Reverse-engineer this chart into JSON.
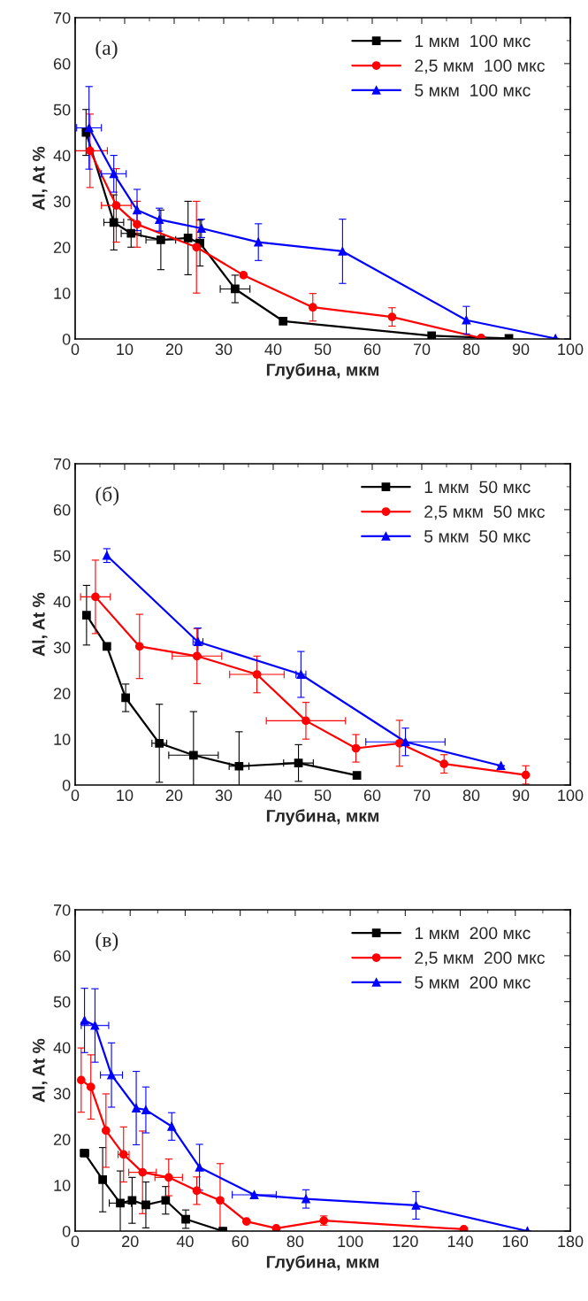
{
  "chart_data": [
    {
      "type": "line",
      "annotations": [
        "(a)"
      ],
      "xlabel": "Глубина, мкм",
      "ylabel": "Al, At %",
      "xlim": [
        0,
        100
      ],
      "xticks": [
        0,
        10,
        20,
        30,
        40,
        50,
        60,
        70,
        80,
        90,
        100
      ],
      "ylim": [
        0,
        70
      ],
      "yticks": [
        0,
        10,
        20,
        30,
        40,
        50,
        60,
        70
      ],
      "legend": "top right",
      "grid": false,
      "series": [
        {
          "name": "1 мкм  100 мкс",
          "color": "#000000",
          "marker": "square",
          "x": [
            2.2,
            7.8,
            11.3,
            17.3,
            22.8,
            25.2,
            32.3,
            42,
            72,
            87.6
          ],
          "values": [
            45,
            25.4,
            23,
            21.6,
            22,
            20.9,
            10.9,
            3.9,
            0.7,
            0.1
          ],
          "errors": [
            5,
            6,
            3,
            6.5,
            8,
            5,
            3,
            null,
            null,
            null
          ],
          "xerrors": [
            null,
            2,
            2,
            3,
            null,
            null,
            3,
            null,
            null,
            null
          ]
        },
        {
          "name": "2,5 мкм  100 мкс",
          "color": "#ff0000",
          "marker": "circle",
          "x": [
            3,
            8.3,
            12.5,
            24.5,
            34,
            48,
            64,
            82
          ],
          "values": [
            41,
            29.1,
            25,
            20,
            13.9,
            6.9,
            4.8,
            0.2
          ],
          "errors": [
            8,
            8,
            5,
            10,
            null,
            3,
            2,
            null
          ],
          "xerrors": [
            3.5,
            3,
            null,
            null,
            null,
            null,
            null,
            null
          ]
        },
        {
          "name": "5 мкм  100 мкс",
          "color": "#0000ff",
          "marker": "triangle",
          "x": [
            2.8,
            7.8,
            12.5,
            17,
            25.5,
            37,
            54,
            79,
            97
          ],
          "values": [
            46,
            36,
            28.1,
            26,
            24.1,
            21.1,
            19.1,
            4.1,
            0.1
          ],
          "errors": [
            9,
            4,
            4.5,
            2.5,
            2,
            4,
            7,
            3,
            null
          ],
          "xerrors": [
            2.5,
            2.5,
            null,
            null,
            null,
            null,
            null,
            null,
            null
          ]
        }
      ]
    },
    {
      "type": "line",
      "annotations": [
        "(б)"
      ],
      "xlabel": "Глубина, мкм",
      "ylabel": "Al, At %",
      "xlim": [
        0,
        100
      ],
      "xticks": [
        0,
        10,
        20,
        30,
        40,
        50,
        60,
        70,
        80,
        90,
        100
      ],
      "ylim": [
        0,
        70
      ],
      "yticks": [
        0,
        10,
        20,
        30,
        40,
        50,
        60,
        70
      ],
      "legend": "top right",
      "grid": false,
      "series": [
        {
          "name": "1 мкм  50 мкс",
          "color": "#000000",
          "marker": "square",
          "x": [
            2.3,
            6.4,
            10.2,
            17,
            23.9,
            33.1,
            45.1,
            56.9
          ],
          "values": [
            37,
            30.2,
            19,
            9.1,
            6.5,
            4.1,
            4.8,
            2.1
          ],
          "errors": [
            6.5,
            null,
            3,
            8.5,
            9.5,
            7.5,
            4,
            null
          ],
          "xerrors": [
            null,
            null,
            null,
            1.5,
            5,
            2,
            3,
            null
          ]
        },
        {
          "name": "2,5 мкм  50 мкс",
          "color": "#ff0000",
          "marker": "circle",
          "x": [
            4.1,
            13,
            24.6,
            36.7,
            46.6,
            56.7,
            65.5,
            74.5,
            91
          ],
          "values": [
            41,
            30.2,
            28.1,
            24.1,
            14,
            8,
            9.1,
            4.6,
            2.2
          ],
          "errors": [
            8,
            7,
            6,
            4,
            4,
            3,
            5,
            2,
            2
          ],
          "xerrors": [
            3,
            null,
            5,
            5.5,
            8,
            null,
            null,
            null,
            null
          ]
        },
        {
          "name": "5 мкм  50 мкс",
          "color": "#0000ff",
          "marker": "triangle",
          "x": [
            6.4,
            24.8,
            45.6,
            66.7,
            86
          ],
          "values": [
            50,
            31.2,
            24.1,
            9.4,
            4.2
          ],
          "errors": [
            1.5,
            3,
            5,
            3,
            null
          ],
          "xerrors": [
            null,
            1,
            1,
            8,
            null
          ]
        }
      ]
    },
    {
      "type": "line",
      "annotations": [
        "(в)"
      ],
      "xlabel": "Глубина, мкм",
      "ylabel": "Al, At %",
      "xlim": [
        0,
        180
      ],
      "xticks": [
        0,
        20,
        40,
        60,
        80,
        100,
        120,
        140,
        160,
        180
      ],
      "ylim": [
        0,
        70
      ],
      "yticks": [
        0,
        10,
        20,
        30,
        40,
        50,
        60,
        70
      ],
      "legend": "top right",
      "grid": false,
      "series": [
        {
          "name": "1 мкм  200 мкс",
          "color": "#000000",
          "marker": "square",
          "x": [
            3.4,
            10,
            16.4,
            20.7,
            25.7,
            32.9,
            40.2,
            53.7
          ],
          "values": [
            17,
            11.2,
            6.1,
            6.7,
            5.7,
            6.7,
            2.6,
            0
          ],
          "errors": [
            null,
            7,
            7,
            5,
            5,
            3,
            2,
            null
          ],
          "xerrors": [
            1.5,
            null,
            4,
            null,
            null,
            null,
            null,
            null
          ]
        },
        {
          "name": "2,5 мкм  200 мкс",
          "color": "#ff0000",
          "marker": "circle",
          "x": [
            2.2,
            5.7,
            11.2,
            17.6,
            24.5,
            34,
            44.2,
            52.7,
            62.3,
            73.1,
            90.4,
            141.3
          ],
          "values": [
            32.9,
            31.4,
            21.9,
            16.7,
            12.8,
            11.7,
            8.8,
            6.7,
            2.1,
            0.6,
            2.3,
            0.4
          ],
          "errors": [
            7,
            7,
            8,
            6,
            9,
            4,
            3,
            8,
            null,
            null,
            1,
            null
          ],
          "xerrors": [
            null,
            null,
            null,
            2,
            5,
            5,
            null,
            null,
            null,
            null,
            null,
            null
          ]
        },
        {
          "name": "5 мкм  200 мкс",
          "color": "#0000ff",
          "marker": "triangle",
          "x": [
            3.4,
            7.2,
            13.2,
            22.2,
            25.7,
            35.1,
            45.2,
            65.1,
            83.9,
            123.9,
            164.4
          ],
          "values": [
            45.9,
            44.8,
            34,
            26.8,
            26.4,
            22.8,
            13.9,
            7.9,
            7,
            5.6,
            0
          ],
          "errors": [
            7,
            8,
            7,
            8,
            5,
            3,
            5,
            null,
            2,
            3,
            null
          ],
          "xerrors": [
            null,
            5,
            4,
            null,
            null,
            null,
            null,
            8,
            null,
            null,
            null
          ]
        }
      ]
    }
  ]
}
